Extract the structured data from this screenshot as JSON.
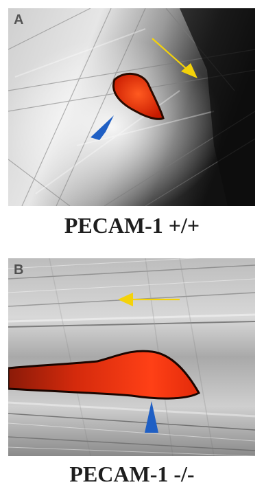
{
  "panels": [
    {
      "letter": "A",
      "caption": "PECAM-1 +/+"
    },
    {
      "letter": "B",
      "caption": "PECAM-1 -/-"
    }
  ],
  "colors": {
    "cell": "#ff3a10",
    "cell_edge": "#2a0a00",
    "blue_arrowhead": "#1f5fc4",
    "yellow_arrow": "#f4d20a"
  },
  "icons": {
    "flow_arrow": "arrow-icon",
    "cell_marker": "arrowhead-icon"
  }
}
